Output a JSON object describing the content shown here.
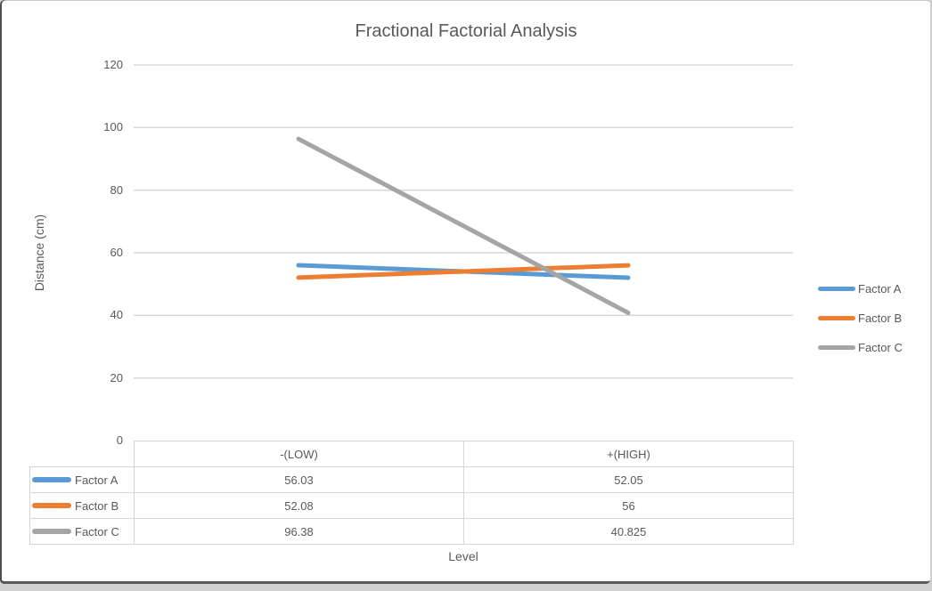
{
  "chart_data": {
    "type": "line",
    "title": "Fractional Factorial Analysis",
    "xlabel": "Level",
    "ylabel": "Distance (cm)",
    "categories": [
      "-(LOW)",
      "+(HIGH)"
    ],
    "series": [
      {
        "name": "Factor A",
        "values": [
          56.03,
          52.05
        ],
        "color": "#5B9BD5"
      },
      {
        "name": "Factor B",
        "values": [
          52.08,
          56
        ],
        "color": "#ED7D31"
      },
      {
        "name": "Factor C",
        "values": [
          96.38,
          40.825
        ],
        "color": "#A5A5A5"
      }
    ],
    "ylim": [
      0,
      120
    ],
    "yticks": [
      0,
      20,
      40,
      60,
      80,
      100,
      120
    ],
    "grid": true,
    "legend_position": "right",
    "legend": [
      "Factor A",
      "Factor B",
      "Factor C"
    ],
    "data_table": {
      "column_headers": [
        "-(LOW)",
        "+(HIGH)"
      ],
      "rows": [
        {
          "label": "Factor A",
          "cells": [
            "56.03",
            "52.05"
          ]
        },
        {
          "label": "Factor B",
          "cells": [
            "52.08",
            "56"
          ]
        },
        {
          "label": "Factor C",
          "cells": [
            "96.38",
            "40.825"
          ]
        }
      ]
    }
  },
  "colors": {
    "text": "#595959",
    "gridline": "#d9d9d9",
    "table_border": "#d6d6d6",
    "window_border": "#4d4d4d",
    "background": "#ffffff"
  }
}
